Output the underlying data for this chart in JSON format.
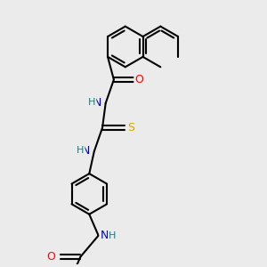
{
  "bg_color": "#ebebeb",
  "bond_color": "#000000",
  "bond_width": 1.5,
  "atom_colors": {
    "N": "#0000cc",
    "O": "#ff0000",
    "S": "#ccaa00",
    "H": "#008888",
    "C": "#000000"
  },
  "font_size": 9
}
